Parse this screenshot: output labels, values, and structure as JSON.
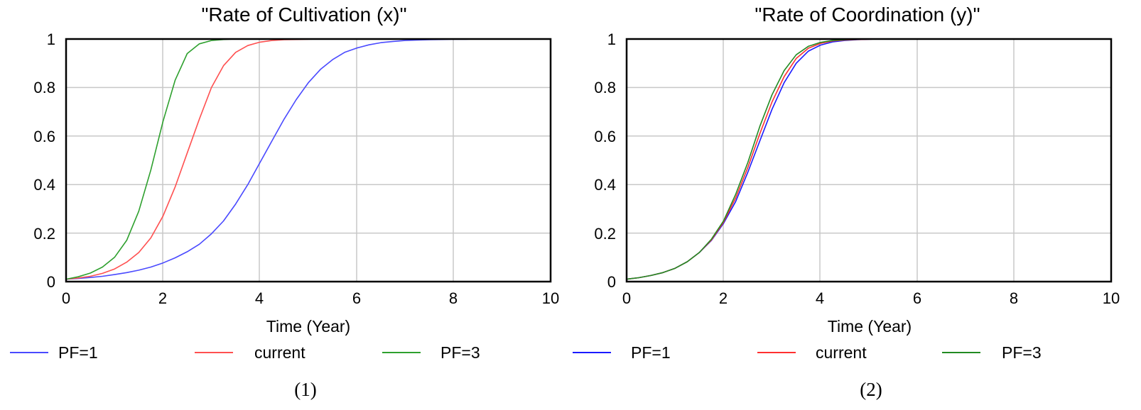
{
  "chart_data": [
    {
      "type": "line",
      "title": "\"Rate of Cultivation (x)\"",
      "xlabel": "Time (Year)",
      "ylabel": "",
      "xlim": [
        0,
        10
      ],
      "ylim": [
        0,
        1
      ],
      "xticks": [
        "0",
        "2",
        "4",
        "6",
        "8",
        "10"
      ],
      "yticks": [
        "0",
        "0.2",
        "0.4",
        "0.6",
        "0.8",
        "1"
      ],
      "grid": true,
      "legend_position": "bottom",
      "caption": "(1)",
      "x": [
        0,
        0.25,
        0.5,
        0.75,
        1,
        1.25,
        1.5,
        1.75,
        2,
        2.25,
        2.5,
        2.75,
        3,
        3.25,
        3.5,
        3.75,
        4,
        4.25,
        4.5,
        4.75,
        5,
        5.25,
        5.5,
        5.75,
        6,
        6.25,
        6.5,
        6.75,
        7,
        7.25,
        7.5,
        7.75,
        8,
        8.25,
        8.5,
        8.75,
        9,
        9.25,
        9.5,
        9.75,
        10
      ],
      "series": [
        {
          "name": "PF=1",
          "color": "#4a4aff",
          "values": [
            0.01,
            0.013,
            0.017,
            0.022,
            0.029,
            0.037,
            0.047,
            0.06,
            0.077,
            0.098,
            0.123,
            0.154,
            0.197,
            0.25,
            0.32,
            0.4,
            0.49,
            0.58,
            0.67,
            0.75,
            0.82,
            0.875,
            0.915,
            0.945,
            0.963,
            0.976,
            0.985,
            0.99,
            0.994,
            0.996,
            0.997,
            0.998,
            0.999,
            0.999,
            1,
            1,
            1,
            1,
            1,
            1,
            1
          ]
        },
        {
          "name": "current",
          "color": "#ff5050",
          "values": [
            0.01,
            0.015,
            0.022,
            0.034,
            0.052,
            0.08,
            0.12,
            0.18,
            0.27,
            0.39,
            0.53,
            0.67,
            0.8,
            0.89,
            0.945,
            0.973,
            0.987,
            0.994,
            0.997,
            0.998,
            0.999,
            1,
            1,
            1,
            1,
            1,
            1,
            1,
            1,
            1,
            1,
            1,
            1,
            1,
            1,
            1,
            1,
            1,
            1,
            1,
            1
          ]
        },
        {
          "name": "PF=3",
          "color": "#2ea02e",
          "values": [
            0.01,
            0.02,
            0.035,
            0.06,
            0.1,
            0.17,
            0.29,
            0.46,
            0.66,
            0.83,
            0.94,
            0.98,
            0.994,
            0.998,
            1,
            1,
            1,
            1,
            1,
            1,
            1,
            1,
            1,
            1,
            1,
            1,
            1,
            1,
            1,
            1,
            1,
            1,
            1,
            1,
            1,
            1,
            1,
            1,
            1,
            1,
            1
          ]
        }
      ]
    },
    {
      "type": "line",
      "title": "\"Rate of Coordination (y)\"",
      "xlabel": "Time (Year)",
      "ylabel": "",
      "xlim": [
        0,
        10
      ],
      "ylim": [
        0,
        1
      ],
      "xticks": [
        "0",
        "2",
        "4",
        "6",
        "8",
        "10"
      ],
      "yticks": [
        "0",
        "0.2",
        "0.4",
        "0.6",
        "0.8",
        "1"
      ],
      "grid": true,
      "legend_position": "bottom",
      "caption": "(2)",
      "x": [
        0,
        0.25,
        0.5,
        0.75,
        1,
        1.25,
        1.5,
        1.75,
        2,
        2.25,
        2.5,
        2.75,
        3,
        3.25,
        3.5,
        3.75,
        4,
        4.25,
        4.5,
        4.75,
        5,
        5.25,
        5.5,
        5.75,
        6,
        6.25,
        6.5,
        6.75,
        7,
        7.25,
        7.5,
        7.75,
        8,
        8.25,
        8.5,
        8.75,
        9,
        9.25,
        9.5,
        9.75,
        10
      ],
      "series": [
        {
          "name": "PF=1",
          "color": "#1a1aff",
          "values": [
            0.01,
            0.016,
            0.025,
            0.037,
            0.055,
            0.082,
            0.12,
            0.17,
            0.24,
            0.33,
            0.45,
            0.58,
            0.71,
            0.82,
            0.9,
            0.95,
            0.975,
            0.988,
            0.994,
            0.997,
            0.999,
            1,
            1,
            1,
            1,
            1,
            1,
            1,
            1,
            1,
            1,
            1,
            1,
            1,
            1,
            1,
            1,
            1,
            1,
            1,
            1
          ]
        },
        {
          "name": "current",
          "color": "#ff3030",
          "values": [
            0.01,
            0.016,
            0.025,
            0.037,
            0.055,
            0.082,
            0.12,
            0.172,
            0.245,
            0.345,
            0.47,
            0.61,
            0.74,
            0.845,
            0.92,
            0.962,
            0.982,
            0.992,
            0.996,
            0.998,
            0.999,
            1,
            1,
            1,
            1,
            1,
            1,
            1,
            1,
            1,
            1,
            1,
            1,
            1,
            1,
            1,
            1,
            1,
            1,
            1,
            1
          ]
        },
        {
          "name": "PF=3",
          "color": "#228b22",
          "values": [
            0.01,
            0.016,
            0.025,
            0.037,
            0.055,
            0.082,
            0.12,
            0.175,
            0.25,
            0.36,
            0.49,
            0.64,
            0.77,
            0.87,
            0.935,
            0.97,
            0.986,
            0.994,
            0.997,
            0.999,
            1,
            1,
            1,
            1,
            1,
            1,
            1,
            1,
            1,
            1,
            1,
            1,
            1,
            1,
            1,
            1,
            1,
            1,
            1,
            1,
            1
          ]
        }
      ]
    }
  ]
}
